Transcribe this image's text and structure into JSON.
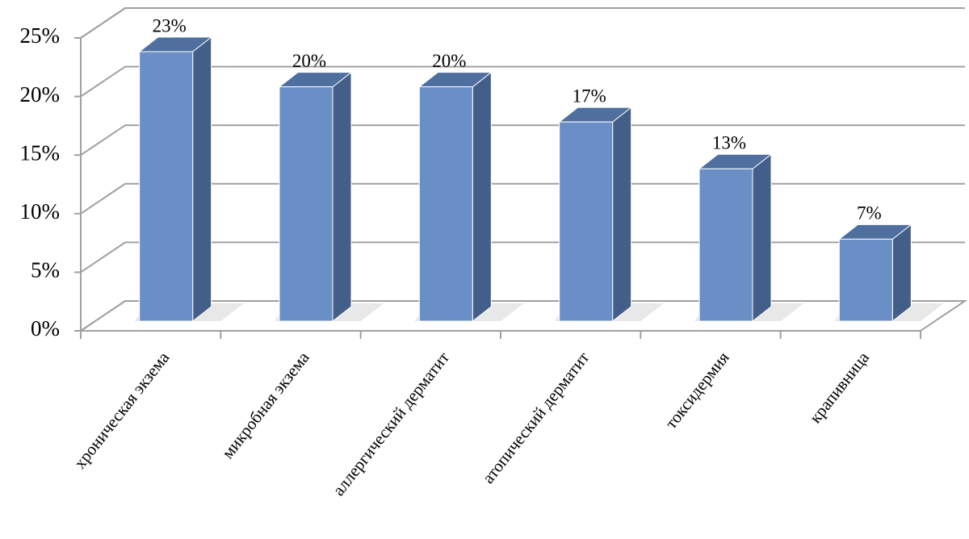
{
  "chart_data": {
    "type": "bar3d",
    "categories": [
      "хроническая экзема",
      "микробная экзема",
      "аллергический дерматит",
      "атопический дерматит",
      "токсидермия",
      "крапивница"
    ],
    "values": [
      23,
      20,
      20,
      17,
      13,
      7
    ],
    "value_labels": [
      "23%",
      "20%",
      "20%",
      "17%",
      "13%",
      "7%"
    ],
    "color": "#6a8ec6",
    "ylim": [
      0,
      25
    ],
    "yticks": [
      {
        "value": 0,
        "label": "0%"
      },
      {
        "value": 5,
        "label": "5%"
      },
      {
        "value": 10,
        "label": "10%"
      },
      {
        "value": 15,
        "label": "15%"
      },
      {
        "value": 20,
        "label": "20%"
      },
      {
        "value": 25,
        "label": "25%"
      }
    ],
    "grid": true
  }
}
